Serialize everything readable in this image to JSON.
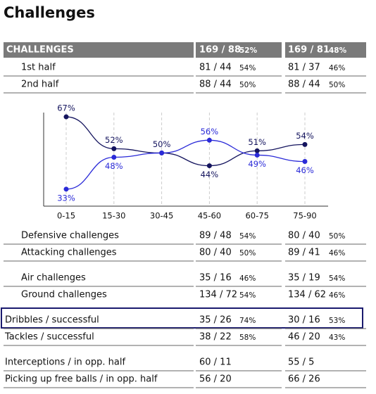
{
  "title": "Challenges",
  "table": {
    "header": {
      "label": "CHALLENGES",
      "team1": "169 / 88",
      "team1_pct": "52%",
      "team2": "169 / 81",
      "team2_pct": "48%"
    },
    "rows": [
      {
        "label": "1st half",
        "team1": "81 / 44",
        "team1_pct": "54%",
        "team2": "81 / 37",
        "team2_pct": "46%"
      },
      {
        "label": "2nd half",
        "team1": "88 / 44",
        "team1_pct": "50%",
        "team2": "88 / 44",
        "team2_pct": "50%"
      },
      {
        "label": "Defensive challenges",
        "team1": "89 / 48",
        "team1_pct": "54%",
        "team2": "80 / 40",
        "team2_pct": "50%"
      },
      {
        "label": "Attacking challenges",
        "team1": "80 / 40",
        "team1_pct": "50%",
        "team2": "89 / 41",
        "team2_pct": "46%"
      },
      {
        "label": "Air challenges",
        "team1": "35 / 16",
        "team1_pct": "46%",
        "team2": "35 / 19",
        "team2_pct": "54%"
      },
      {
        "label": "Ground challenges",
        "team1": "134 / 72",
        "team1_pct": "54%",
        "team2": "134 / 62",
        "team2_pct": "46%"
      },
      {
        "label": "Dribbles / successful",
        "team1": "35 / 26",
        "team1_pct": "74%",
        "team2": "30 / 16",
        "team2_pct": "53%"
      },
      {
        "label": "Tackles / successful",
        "team1": "38 / 22",
        "team1_pct": "58%",
        "team2": "46 / 20",
        "team2_pct": "43%"
      },
      {
        "label": "Interceptions / in opp. half",
        "team1": "60 / 11",
        "team2": "55 / 5"
      },
      {
        "label": "Picking up free balls / in opp. half",
        "team1": "56 / 20",
        "team2": "66 / 26"
      }
    ]
  },
  "chart_data": {
    "type": "line",
    "categories": [
      "0-15",
      "15-30",
      "30-45",
      "45-60",
      "60-75",
      "75-90"
    ],
    "series": [
      {
        "color": "#14145e",
        "values": [
          67,
          52,
          50,
          44,
          51,
          54
        ],
        "value_labels": [
          "67%",
          "52%",
          "50%",
          "44%",
          "51%",
          "54%"
        ]
      },
      {
        "color": "#2a2ad8",
        "values": [
          33,
          48,
          50,
          56,
          49,
          46
        ],
        "value_labels": [
          "33%",
          "48%",
          null,
          "56%",
          "49%",
          "46%"
        ]
      }
    ],
    "ylim": [
      25,
      69
    ],
    "grid": true
  }
}
